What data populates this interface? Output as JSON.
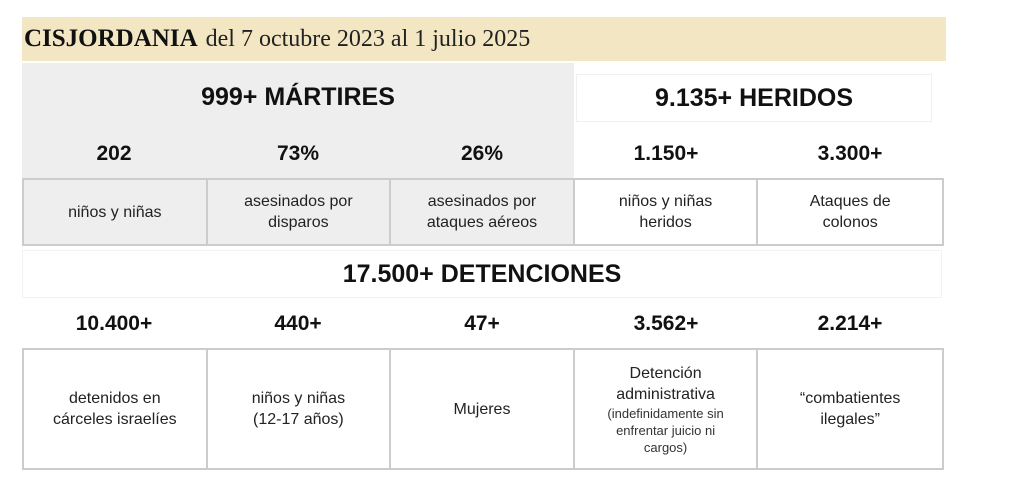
{
  "header": {
    "region": "CISJORDANIA",
    "period": "del 7 octubre 2023 al 1 julio 2025"
  },
  "martires": {
    "heading": "999+ MÁRTIRES",
    "stats": [
      {
        "value": "202",
        "lines": [
          "niños y niñas"
        ]
      },
      {
        "value": "73%",
        "lines": [
          "asesinados por",
          "disparos"
        ]
      },
      {
        "value": "26%",
        "lines": [
          "asesinados por",
          "ataques aéreos"
        ]
      }
    ]
  },
  "heridos": {
    "heading": "9.135+ HERIDOS",
    "stats": [
      {
        "value": "1.150+",
        "lines": [
          "niños y niñas",
          "heridos"
        ]
      },
      {
        "value": "3.300+",
        "lines": [
          "Ataques de",
          "colonos"
        ]
      }
    ]
  },
  "detenciones": {
    "heading": "17.500+ DETENCIONES",
    "stats": [
      {
        "value": "10.400+",
        "lines": [
          "detenidos en",
          "cárceles israelíes"
        ],
        "note": []
      },
      {
        "value": "440+",
        "lines": [
          "niños y niñas"
        ],
        "note": [
          "(12-17 años)"
        ]
      },
      {
        "value": "47+",
        "lines": [
          "Mujeres"
        ],
        "note": []
      },
      {
        "value": "3.562+",
        "lines": [
          "Detención",
          "administrativa"
        ],
        "note": [
          "(indefinidamente sin",
          "enfrentar juicio ni",
          "cargos)"
        ]
      },
      {
        "value": "2.214+",
        "lines": [
          "“combatientes",
          "ilegales”"
        ],
        "note": []
      }
    ]
  }
}
